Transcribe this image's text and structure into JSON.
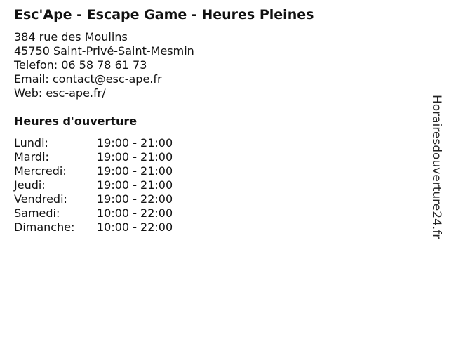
{
  "title": "Esc'Ape - Escape Game - Heures Pleines",
  "address": {
    "street": "384 rue des Moulins",
    "city": "45750 Saint-Privé-Saint-Mesmin",
    "phone": "Telefon: 06 58 78 61 73",
    "email": "Email: contact@esc-ape.fr",
    "web": "Web: esc-ape.fr/"
  },
  "hours_title": "Heures d'ouverture",
  "hours": [
    {
      "day": "Lundi:",
      "time": "19:00 - 21:00"
    },
    {
      "day": "Mardi:",
      "time": "19:00 - 21:00"
    },
    {
      "day": "Mercredi:",
      "time": "19:00 - 21:00"
    },
    {
      "day": "Jeudi:",
      "time": "19:00 - 21:00"
    },
    {
      "day": "Vendredi:",
      "time": "19:00 - 22:00"
    },
    {
      "day": "Samedi:",
      "time": "10:00 - 22:00"
    },
    {
      "day": "Dimanche:",
      "time": "10:00 - 22:00"
    }
  ],
  "brand": "Horairesdouverture24.fr"
}
